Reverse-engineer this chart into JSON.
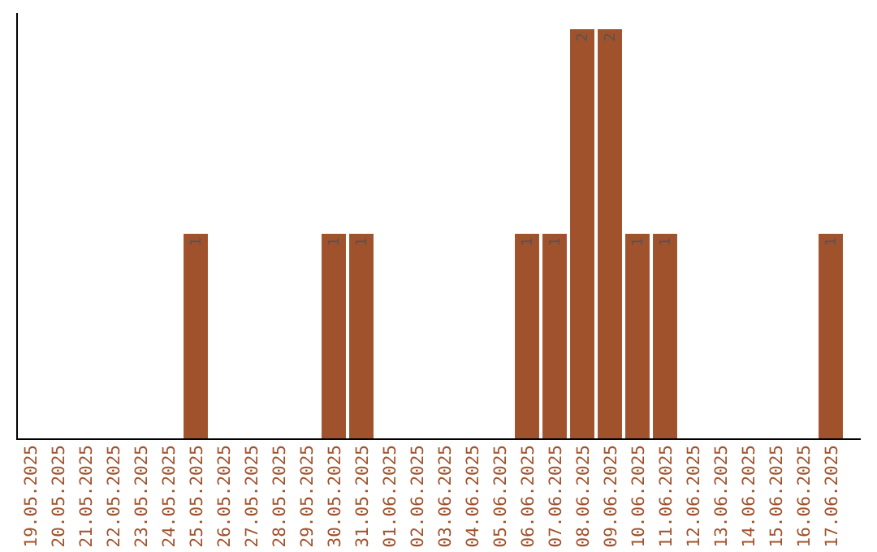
{
  "chart_data": {
    "type": "bar",
    "categories": [
      "19.05.2025",
      "20.05.2025",
      "21.05.2025",
      "22.05.2025",
      "23.05.2025",
      "24.05.2025",
      "25.05.2025",
      "26.05.2025",
      "27.05.2025",
      "28.05.2025",
      "29.05.2025",
      "30.05.2025",
      "31.05.2025",
      "01.06.2025",
      "02.06.2025",
      "03.06.2025",
      "04.06.2025",
      "05.06.2025",
      "06.06.2025",
      "07.06.2025",
      "08.06.2025",
      "09.06.2025",
      "10.06.2025",
      "11.06.2025",
      "12.06.2025",
      "13.06.2025",
      "14.06.2025",
      "15.06.2025",
      "16.06.2025",
      "17.06.2025"
    ],
    "values": [
      0,
      0,
      0,
      0,
      0,
      0,
      1,
      0,
      0,
      0,
      0,
      1,
      1,
      0,
      0,
      0,
      0,
      0,
      1,
      1,
      2,
      2,
      1,
      1,
      0,
      0,
      0,
      0,
      0,
      1
    ],
    "value_labels": [
      null,
      null,
      null,
      null,
      null,
      null,
      "1",
      null,
      null,
      null,
      null,
      "1",
      "1",
      null,
      null,
      null,
      null,
      null,
      "1",
      "1",
      "2",
      "2",
      "1",
      "1",
      null,
      null,
      null,
      null,
      null,
      "1"
    ],
    "color": "#a0522d",
    "ylim": [
      0,
      2
    ],
    "tick_labels": "x"
  }
}
